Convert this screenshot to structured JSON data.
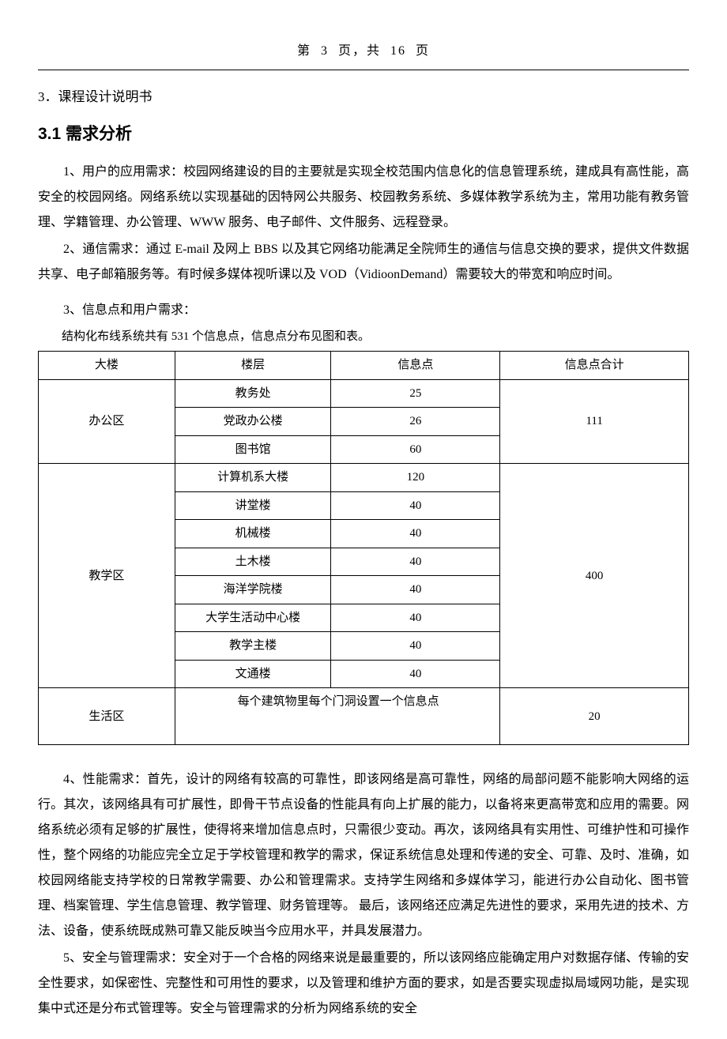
{
  "pager": {
    "prefix": "第",
    "page": "3",
    "mid": "页，共",
    "total": "16",
    "suffix": "页"
  },
  "section3": {
    "num": "3．",
    "title": "课程设计说明书"
  },
  "section31": {
    "num": "3.1",
    "title": "需求分析"
  },
  "p1": "1、用户的应用需求：校园网络建设的目的主要就是实现全校范围内信息化的信息管理系统，建成具有高性能，高安全的校园网络。网络系统以实现基础的因特网公共服务、校园教务系统、多媒体教学系统为主，常用功能有教务管理、学籍管理、办公管理、WWW 服务、电子邮件、文件服务、远程登录。",
  "p2": "2、通信需求：通过 E-mail 及网上 BBS 以及其它网络功能满足全院师生的通信与信息交换的要求，提供文件数据共享、电子邮箱服务等。有时候多媒体视听课以及 VOD（VidioonDemand）需要较大的带宽和响应时间。",
  "p3_title": "3、信息点和用户需求：",
  "p3_intro": "结构化布线系统共有 531 个信息点，信息点分布见图和表。",
  "table": {
    "headers": [
      "大楼",
      "楼层",
      "信息点",
      "信息点合计"
    ],
    "group1": {
      "building": "办公区",
      "rows": [
        {
          "floor": "教务处",
          "points": "25"
        },
        {
          "floor": "党政办公楼",
          "points": "26"
        },
        {
          "floor": "图书馆",
          "points": "60"
        }
      ],
      "total": "111"
    },
    "group2": {
      "building": "教学区",
      "rows": [
        {
          "floor": "计算机系大楼",
          "points": "120"
        },
        {
          "floor": "讲堂楼",
          "points": "40"
        },
        {
          "floor": "机械楼",
          "points": "40"
        },
        {
          "floor": "土木楼",
          "points": "40"
        },
        {
          "floor": "海洋学院楼",
          "points": "40"
        },
        {
          "floor": "大学生活动中心楼",
          "points": "40"
        },
        {
          "floor": "教学主楼",
          "points": "40"
        },
        {
          "floor": "文通楼",
          "points": "40"
        }
      ],
      "total": "400"
    },
    "group3": {
      "building": "生活区",
      "note": "每个建筑物里每个门洞设置一个信息点",
      "total": "20"
    }
  },
  "p4": "4、性能需求：首先，设计的网络有较高的可靠性，即该网络是高可靠性，网络的局部问题不能影响大网络的运行。其次，该网络具有可扩展性，即骨干节点设备的性能具有向上扩展的能力，以备将来更高带宽和应用的需要。网络系统必须有足够的扩展性，使得将来增加信息点时，只需很少变动。再次，该网络具有实用性、可维护性和可操作性，整个网络的功能应完全立足于学校管理和教学的需求，保证系统信息处理和传递的安全、可靠、及时、准确，如校园网络能支持学校的日常教学需要、办公和管理需求。支持学生网络和多媒体学习，能进行办公自动化、图书管理、档案管理、学生信息管理、教学管理、财务管理等。 最后，该网络还应满足先进性的要求，采用先进的技术、方法、设备，使系统既成熟可靠又能反映当今应用水平，并具发展潜力。",
  "p5": "5、安全与管理需求：安全对于一个合格的网络来说是最重要的，所以该网络应能确定用户对数据存储、传输的安全性要求，如保密性、完整性和可用性的要求，以及管理和维护方面的要求，如是否要实现虚拟局域网功能，是实现集中式还是分布式管理等。安全与管理需求的分析为网络系统的安全"
}
